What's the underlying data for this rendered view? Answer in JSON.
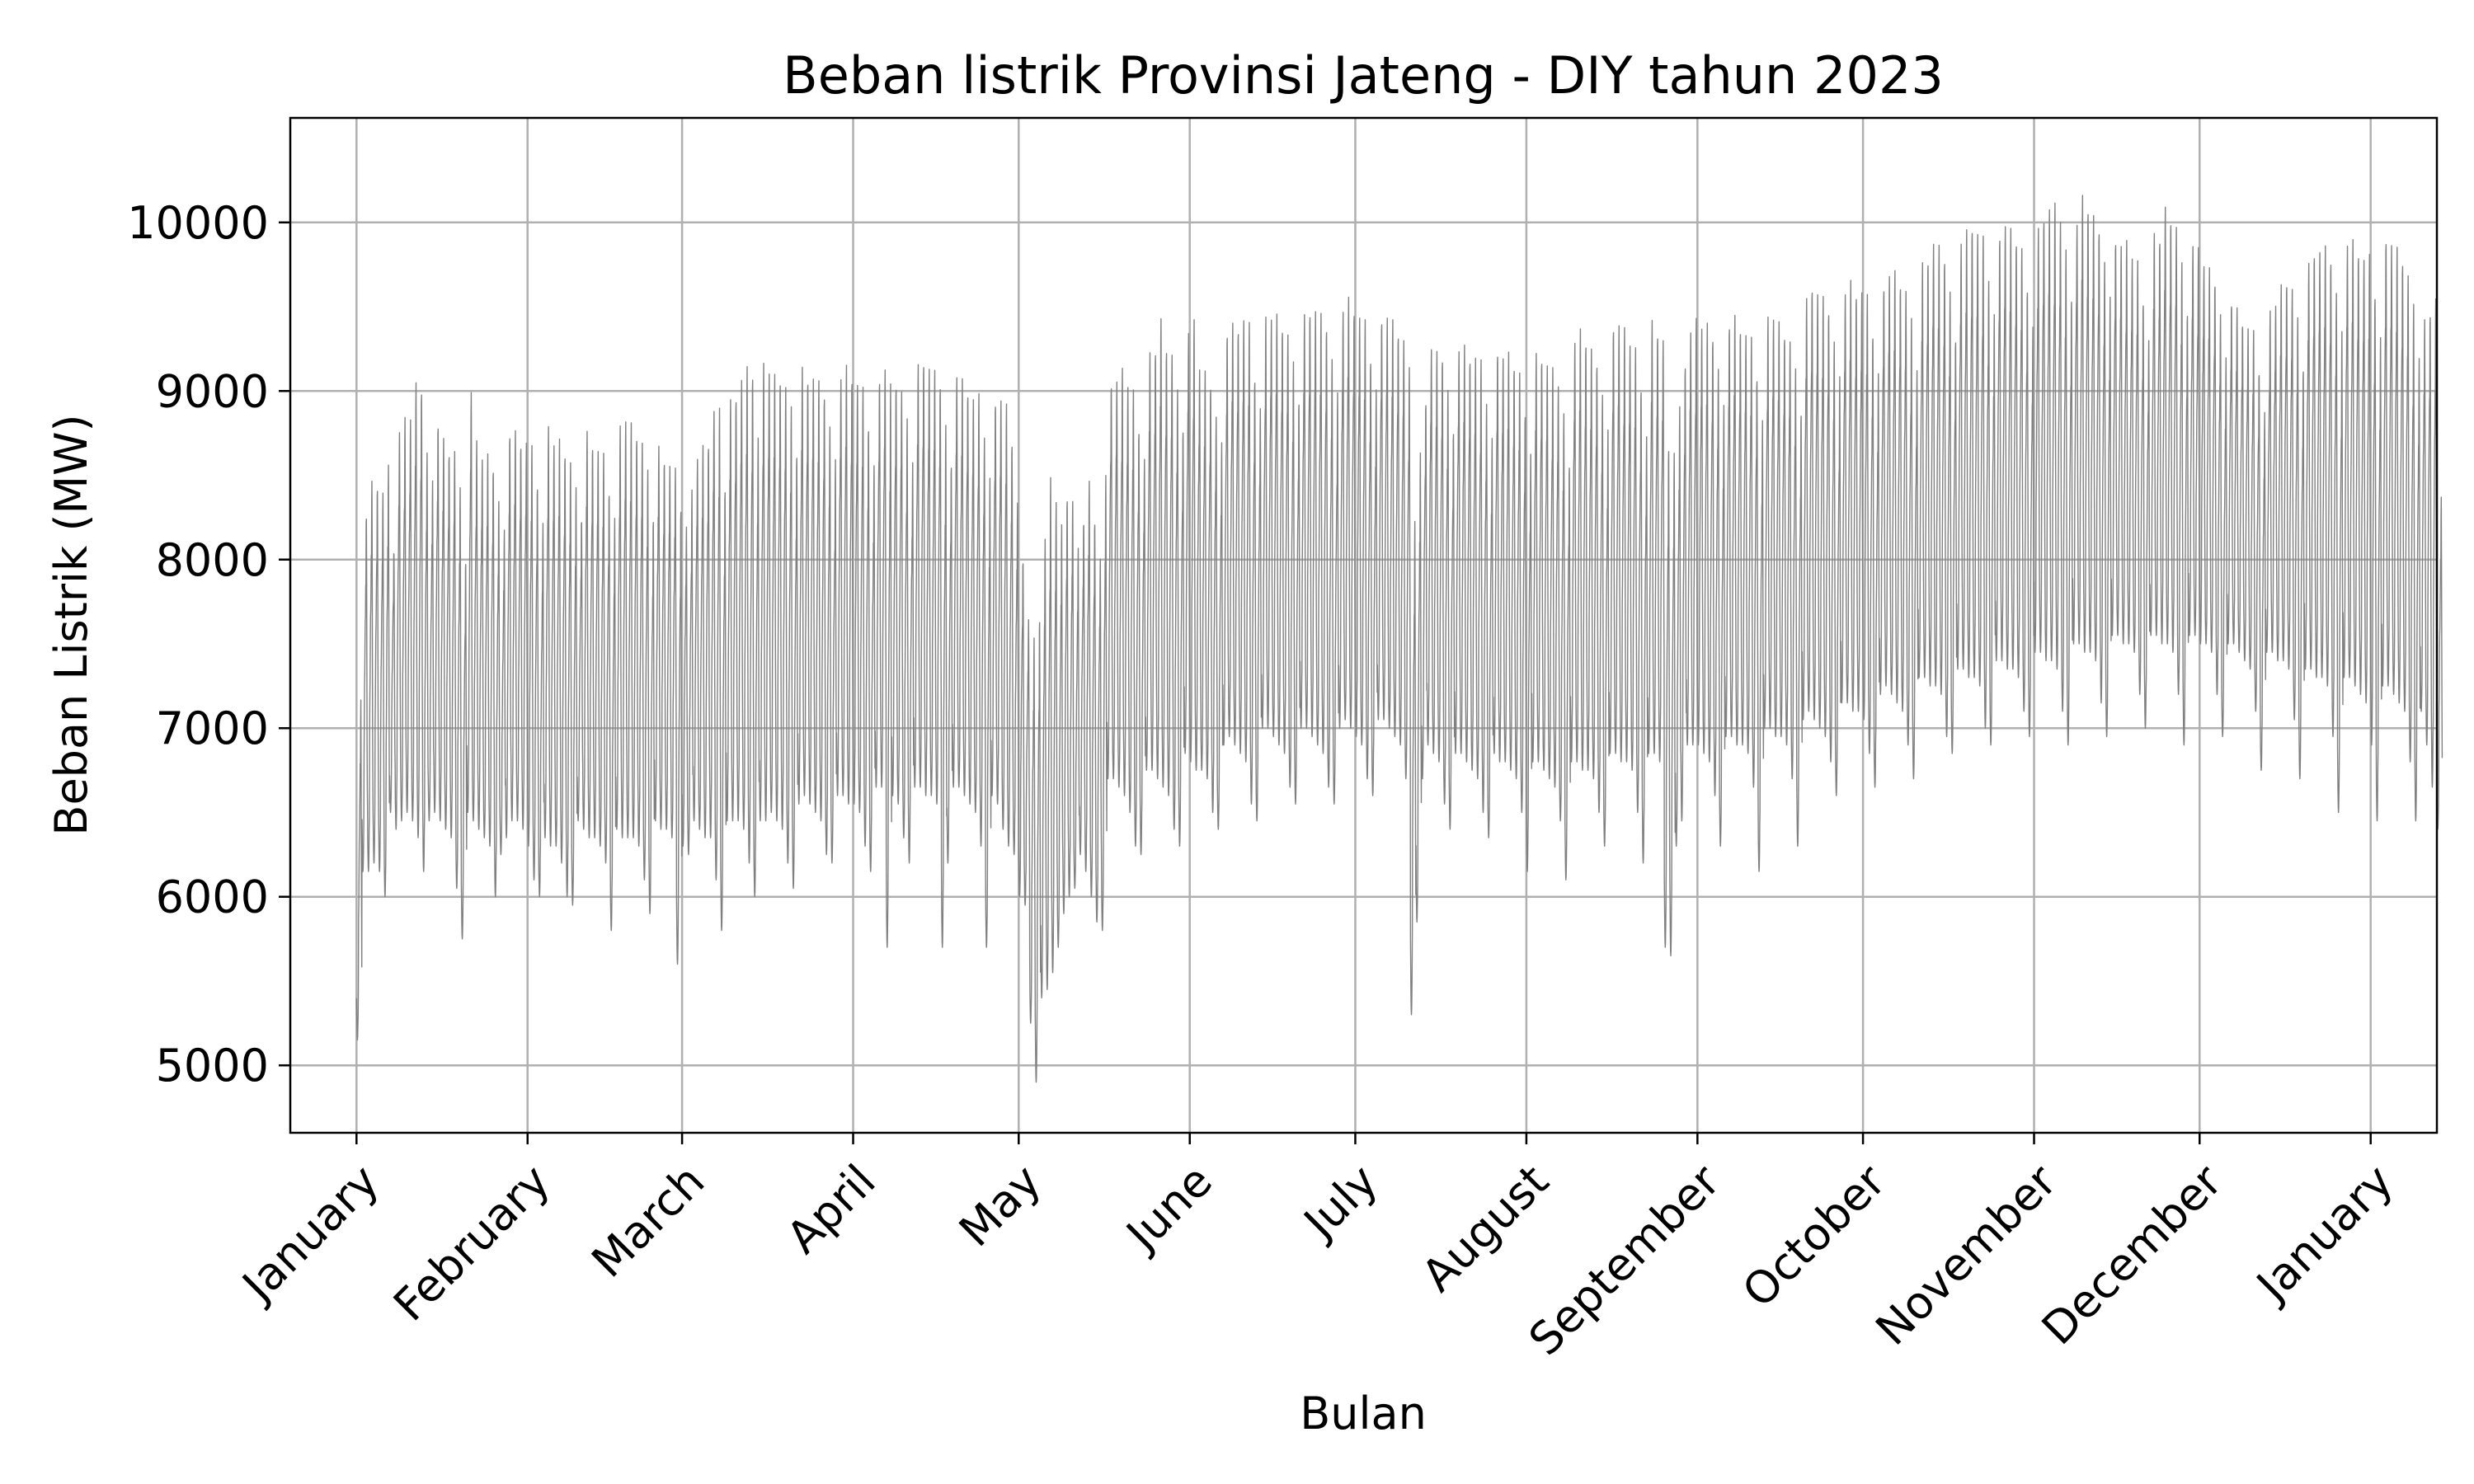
{
  "chart_data": {
    "type": "line",
    "title": "Beban listrik Provinsi Jateng - DIY tahun 2023",
    "xlabel": "Bulan",
    "ylabel": "Beban Listrik (MW)",
    "xlim": [
      "2022-12-20",
      "2024-01-13"
    ],
    "ylim": [
      4600,
      10620
    ],
    "yticks": [
      5000,
      6000,
      7000,
      8000,
      9000,
      10000
    ],
    "xticks": [
      {
        "date": "2023-01-01",
        "label": "January"
      },
      {
        "date": "2023-02-01",
        "label": "February"
      },
      {
        "date": "2023-03-01",
        "label": "March"
      },
      {
        "date": "2023-04-01",
        "label": "April"
      },
      {
        "date": "2023-05-01",
        "label": "May"
      },
      {
        "date": "2023-06-01",
        "label": "June"
      },
      {
        "date": "2023-07-01",
        "label": "July"
      },
      {
        "date": "2023-08-01",
        "label": "August"
      },
      {
        "date": "2023-09-01",
        "label": "September"
      },
      {
        "date": "2023-10-01",
        "label": "October"
      },
      {
        "date": "2023-11-01",
        "label": "November"
      },
      {
        "date": "2023-12-01",
        "label": "December"
      },
      {
        "date": "2024-01-01",
        "label": "January"
      }
    ],
    "grid": true,
    "line_color": "#808080",
    "sampling": "hourly load; daily minimum and maximum (MW) per date",
    "daily_min": [
      5150,
      6150,
      6150,
      6200,
      6150,
      6000,
      6500,
      6400,
      6450,
      6500,
      6450,
      6350,
      6150,
      6450,
      6500,
      6450,
      6400,
      6350,
      6050,
      5750,
      6500,
      6450,
      6400,
      6350,
      6300,
      6000,
      6250,
      6350,
      6450,
      6450,
      6400,
      6300,
      6100,
      6000,
      6350,
      6300,
      6300,
      6200,
      6000,
      5950,
      6450,
      6400,
      6350,
      6350,
      6300,
      6200,
      5800,
      6400,
      6350,
      6350,
      6350,
      6300,
      6100,
      5900,
      6450,
      6400,
      6400,
      6350,
      5600,
      6300,
      6250,
      6450,
      6400,
      6350,
      6350,
      6100,
      5800,
      6450,
      6450,
      6450,
      6400,
      6200,
      6000,
      6450,
      6450,
      6500,
      6450,
      6400,
      6200,
      6050,
      6550,
      6600,
      6550,
      6500,
      6450,
      6250,
      6200,
      6600,
      6600,
      6550,
      6550,
      6500,
      6300,
      6150,
      6650,
      6650,
      5700,
      6600,
      6550,
      6350,
      6200,
      6650,
      6650,
      6600,
      6600,
      6550,
      5700,
      6200,
      6650,
      6650,
      6600,
      6550,
      6500,
      6300,
      5700,
      6600,
      6550,
      6400,
      6300,
      6250,
      6000,
      5950,
      5250,
      4900,
      5400,
      5450,
      5550,
      5700,
      5900,
      6000,
      6050,
      6250,
      6150,
      6000,
      5850,
      5800,
      6700,
      6700,
      6650,
      6600,
      6500,
      6300,
      6250,
      6750,
      6750,
      6700,
      6650,
      6600,
      6400,
      6300,
      6850,
      6800,
      6750,
      6750,
      6700,
      6500,
      6400,
      6900,
      6950,
      6900,
      6850,
      6800,
      6550,
      6450,
      7000,
      7000,
      6950,
      6900,
      6850,
      6650,
      6550,
      7000,
      7000,
      6950,
      6900,
      6850,
      6650,
      6550,
      7000,
      7050,
      7000,
      6950,
      6900,
      6700,
      6600,
      7050,
      7050,
      7000,
      6950,
      6900,
      6700,
      5300,
      5850,
      6700,
      6900,
      6850,
      6800,
      6550,
      6400,
      6850,
      6850,
      6800,
      6750,
      6700,
      6500,
      6350,
      6850,
      6800,
      6800,
      6750,
      6700,
      6500,
      6150,
      6800,
      6800,
      6750,
      6700,
      6650,
      6450,
      6100,
      6800,
      6800,
      6750,
      6750,
      6700,
      6500,
      6300,
      6850,
      6850,
      6800,
      6800,
      6750,
      6500,
      6200,
      6850,
      6850,
      6800,
      5700,
      5650,
      6300,
      6450,
      6900,
      6900,
      6900,
      6850,
      6800,
      6600,
      6300,
      6950,
      6950,
      6900,
      6900,
      6850,
      6650,
      6150,
      7000,
      7000,
      6950,
      6950,
      6900,
      6700,
      6300,
      7050,
      7100,
      7050,
      7000,
      6950,
      6800,
      6600,
      7150,
      7150,
      7100,
      7100,
      7050,
      6850,
      6650,
      7200,
      7250,
      7200,
      7150,
      7100,
      6900,
      6700,
      7300,
      7300,
      7250,
      7250,
      7200,
      6950,
      6850,
      7350,
      7350,
      7300,
      7300,
      7250,
      7000,
      6900,
      7400,
      7400,
      7350,
      7350,
      7300,
      7100,
      6950,
      7450,
      7450,
      7400,
      7400,
      7350,
      7100,
      6900,
      7500,
      7500,
      7450,
      7450,
      7400,
      7150,
      6950,
      7550,
      7550,
      7500,
      7500,
      7450,
      7200,
      7000,
      7550,
      7550,
      7500,
      7500,
      7450,
      7200,
      6900,
      7550,
      7550,
      7500,
      7500,
      7450,
      7200,
      6950,
      7500,
      7500,
      7450,
      7400,
      7350,
      7100,
      6750,
      7450,
      7450,
      7400,
      7400,
      7350,
      7050,
      6700,
      7350,
      7350,
      7300,
      7300,
      7250,
      6950,
      6500,
      7300,
      7300,
      7250,
      7200,
      7150,
      6900,
      6450,
      7250,
      7250,
      7200,
      7150,
      7100,
      6800,
      6450,
      7100,
      6900,
      6650,
      6400
    ],
    "daily_max": [
      7300,
      8450,
      8650,
      8650,
      8600,
      8750,
      8200,
      8950,
      9000,
      9050,
      9250,
      9250,
      8850,
      8600,
      9000,
      8900,
      8850,
      8850,
      8600,
      8200,
      9200,
      8850,
      8800,
      8800,
      8750,
      8550,
      8300,
      8950,
      8950,
      8900,
      8900,
      8850,
      8650,
      8400,
      8950,
      8900,
      8900,
      8850,
      8800,
      8600,
      8400,
      8950,
      8900,
      8850,
      8800,
      8600,
      8450,
      8950,
      9050,
      9000,
      8950,
      8900,
      8700,
      8450,
      8850,
      8800,
      8750,
      8700,
      8550,
      8350,
      8550,
      8800,
      8850,
      8900,
      9100,
      9100,
      8650,
      9150,
      9200,
      9300,
      9350,
      9350,
      8950,
      9350,
      9350,
      9300,
      9300,
      9250,
      9100,
      8850,
      9350,
      9300,
      9300,
      9250,
      9200,
      9000,
      8750,
      9300,
      9350,
      9300,
      9250,
      9200,
      9000,
      8750,
      9300,
      9350,
      9300,
      9250,
      9200,
      9000,
      8800,
      9350,
      9400,
      9350,
      9300,
      9250,
      9050,
      8800,
      9300,
      9250,
      9200,
      9150,
      9150,
      8950,
      8700,
      9150,
      9150,
      9100,
      8900,
      8500,
      8200,
      7800,
      7700,
      7900,
      8350,
      8700,
      8600,
      8400,
      8600,
      8550,
      8200,
      8400,
      8650,
      8450,
      8200,
      8700,
      9250,
      9250,
      9300,
      9250,
      9200,
      9000,
      8800,
      9400,
      9450,
      9650,
      9500,
      9450,
      9200,
      9000,
      9550,
      9600,
      9350,
      9300,
      9250,
      9050,
      8850,
      9550,
      9600,
      9600,
      9650,
      9600,
      9300,
      9100,
      9600,
      9650,
      9650,
      9600,
      9550,
      9350,
      9150,
      9650,
      9700,
      9700,
      9650,
      9600,
      9400,
      9150,
      9700,
      9750,
      9700,
      9650,
      9600,
      9400,
      9200,
      9650,
      9650,
      9600,
      9550,
      9500,
      9300,
      8500,
      8850,
      9150,
      9450,
      9400,
      9400,
      9200,
      9000,
      9450,
      9450,
      9400,
      9400,
      9350,
      9150,
      8900,
      9450,
      9400,
      9400,
      9350,
      9300,
      9100,
      8850,
      9400,
      9400,
      9350,
      9300,
      9250,
      9050,
      8800,
      9500,
      9550,
      9500,
      9450,
      9400,
      9200,
      8950,
      9600,
      9600,
      9550,
      9500,
      9450,
      9250,
      8950,
      9600,
      9550,
      9500,
      8950,
      8900,
      9100,
      9400,
      9550,
      9600,
      9600,
      9600,
      9550,
      9350,
      9100,
      9600,
      9650,
      9600,
      9550,
      9500,
      9300,
      9050,
      9600,
      9650,
      9600,
      9550,
      9500,
      9300,
      9100,
      9750,
      9850,
      9800,
      9750,
      9700,
      9500,
      9250,
      9800,
      9850,
      9800,
      9800,
      9750,
      9550,
      9300,
      9850,
      9900,
      9900,
      9850,
      9800,
      9600,
      9350,
      9950,
      10000,
      10100,
      10050,
      10000,
      9800,
      9550,
      10100,
      10150,
      10200,
      10150,
      10100,
      9900,
      9650,
      10150,
      10200,
      10150,
      10100,
      10050,
      9850,
      9600,
      10150,
      10250,
      10300,
      10300,
      10250,
      10050,
      9800,
      10200,
      10350,
      10300,
      10250,
      10200,
      10000,
      9750,
      10100,
      10050,
      10050,
      10000,
      9950,
      9750,
      9500,
      10100,
      10100,
      10300,
      10250,
      10200,
      9950,
      9700,
      10050,
      10000,
      9950,
      9900,
      9850,
      9650,
      9350,
      9700,
      9650,
      9600,
      9550,
      9500,
      9300,
      9050,
      9600,
      9700,
      9800,
      9850,
      9800,
      9600,
      9350,
      9950,
      10050,
      10050,
      10050,
      10000,
      9800,
      9550,
      10100,
      10100,
      10050,
      10000,
      10000,
      9800,
      9550,
      10150,
      10100,
      10050,
      10000,
      9900,
      9700,
      9450,
      9600,
      9700,
      9800,
      8500
    ]
  }
}
